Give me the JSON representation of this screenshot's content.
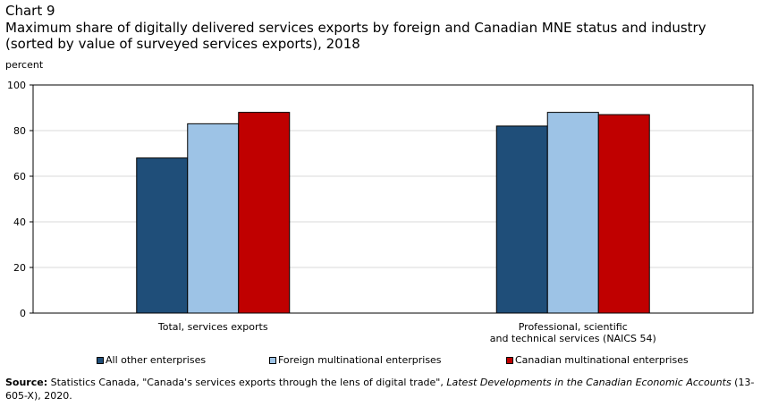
{
  "header": {
    "chart_label": "Chart 9",
    "title": "Maximum share of digitally  delivered services exports by foreign and Canadian MNE status and industry (sorted by value of surveyed services exports), 2018"
  },
  "source": {
    "label": "Source:",
    "text_pre": " Statistics Canada, \"Canada's services exports through the lens of digital trade\", ",
    "italic": "Latest Developments in the Canadian Economic Accounts",
    "text_post": " (13-605-X), 2020."
  },
  "chart_data": {
    "type": "bar",
    "ylabel": "percent",
    "ylim": [
      0,
      100
    ],
    "yticks": [
      0,
      20,
      40,
      60,
      80,
      100
    ],
    "grid": true,
    "legend_position": "bottom",
    "categories": [
      [
        "Total, services exports"
      ],
      [
        "Professional, scientific",
        "and technical services (NAICS 54)"
      ]
    ],
    "series": [
      {
        "name": "All other enterprises",
        "color": "#1f4e79",
        "values": [
          68,
          82
        ]
      },
      {
        "name": "Foreign multinational enterprises",
        "color": "#9dc3e6",
        "values": [
          83,
          88
        ]
      },
      {
        "name": "Canadian multinational enterprises",
        "color": "#c00000",
        "values": [
          88,
          87
        ]
      }
    ]
  }
}
